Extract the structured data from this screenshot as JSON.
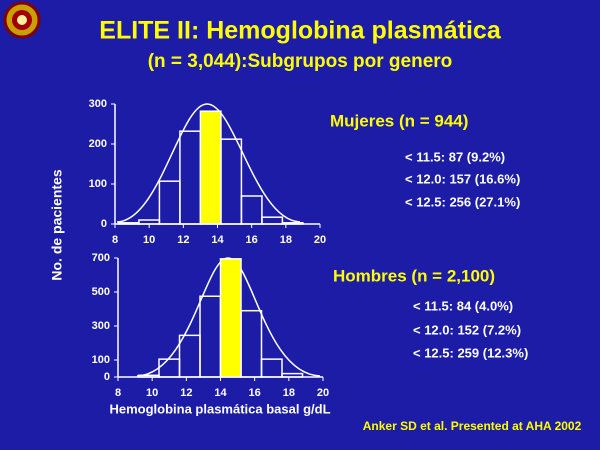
{
  "title": "ELITE II: Hemoglobina plasmática",
  "subtitle": "(n = 3,044):Subgrupos por genero",
  "ylabel": "No. de pacientes",
  "xlabel": "Hemoglobina plasmática basal g/dL",
  "source": "Anker SD et al. Presented at AHA 2002",
  "chart_data": [
    {
      "type": "histogram",
      "heading": "Mujeres (n = 944)",
      "notes": [
        "< 11.5: 87 (9.2%)",
        "< 12.0: 157 (16.6%)",
        "< 12.5: 256 (27.1%)"
      ],
      "bins": [
        8.2,
        9.4,
        10.6,
        11.8,
        13,
        14.2,
        15.4,
        16.6,
        17.8,
        19
      ],
      "values": [
        3,
        10,
        107,
        232,
        282,
        212,
        70,
        17,
        3
      ],
      "colors": [
        "none",
        "none",
        "none",
        "none",
        "#ffff00",
        "none",
        "none",
        "none",
        "none"
      ],
      "xlim": [
        8,
        20
      ],
      "xticks": [
        8,
        10,
        12,
        14,
        16,
        18,
        20
      ],
      "ylim": [
        0,
        300
      ],
      "yticks": [
        0,
        100,
        200,
        300
      ]
    },
    {
      "type": "histogram",
      "heading": "Hombres (n = 2,100)",
      "notes": [
        "< 11.5: 84 (4.0%)",
        "< 12.0: 152 (7.2%)",
        "< 12.5: 259 (12.3%)"
      ],
      "bins": [
        9.2,
        10.4,
        11.6,
        12.8,
        14,
        15.2,
        16.4,
        17.6,
        18.8
      ],
      "values": [
        10,
        105,
        245,
        475,
        695,
        390,
        105,
        20
      ],
      "colors": [
        "none",
        "none",
        "none",
        "none",
        "#ffff00",
        "none",
        "none",
        "none"
      ],
      "xlim": [
        8,
        20
      ],
      "xticks": [
        8,
        10,
        12,
        14,
        16,
        18,
        20
      ],
      "ylim": [
        0,
        700
      ],
      "yticks": [
        0,
        100,
        300,
        500,
        700
      ]
    }
  ]
}
